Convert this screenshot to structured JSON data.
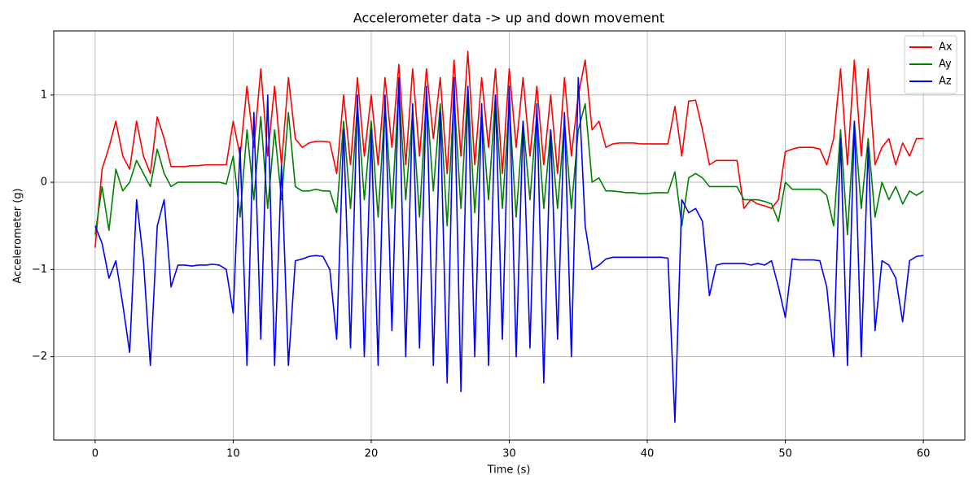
{
  "chart_data": {
    "type": "line",
    "title": "Accelerometer data -> up and down movement",
    "x_label": "Time (s)",
    "y_label": "Accelerometer (g)",
    "x": [
      0,
      0.5,
      1,
      1.5,
      2,
      2.5,
      3,
      3.5,
      4,
      4.5,
      5,
      5.5,
      6,
      6.5,
      7,
      7.5,
      8,
      8.5,
      9,
      9.5,
      10,
      10.5,
      11,
      11.5,
      12,
      12.5,
      13,
      13.5,
      14,
      14.5,
      15,
      15.5,
      16,
      16.5,
      17,
      17.5,
      18,
      18.5,
      19,
      19.5,
      20,
      20.5,
      21,
      21.5,
      22,
      22.5,
      23,
      23.5,
      24,
      24.5,
      25,
      25.5,
      26,
      26.5,
      27,
      27.5,
      28,
      28.5,
      29,
      29.5,
      30,
      30.5,
      31,
      31.5,
      32,
      32.5,
      33,
      33.5,
      34,
      34.5,
      35,
      35.5,
      36,
      36.5,
      37,
      37.5,
      38,
      38.5,
      39,
      39.5,
      40,
      40.5,
      41,
      41.5,
      42,
      42.5,
      43,
      43.5,
      44,
      44.5,
      45,
      45.5,
      46,
      46.5,
      47,
      47.5,
      48,
      48.5,
      49,
      49.5,
      50,
      50.5,
      51,
      51.5,
      52,
      52.5,
      53,
      53.5,
      54,
      54.5,
      55,
      55.5,
      56,
      56.5,
      57,
      57.5,
      58,
      58.5,
      59,
      59.5,
      60
    ],
    "series": [
      {
        "name": "Ax",
        "color": "#ff0000",
        "values": [
          -0.75,
          0.15,
          0.4,
          0.7,
          0.3,
          0.15,
          0.7,
          0.3,
          0.1,
          0.75,
          0.5,
          0.18,
          0.18,
          0.18,
          0.19,
          0.19,
          0.2,
          0.2,
          0.2,
          0.2,
          0.7,
          0.3,
          1.1,
          0.4,
          1.3,
          0.3,
          1.1,
          0.2,
          1.2,
          0.5,
          0.4,
          0.45,
          0.47,
          0.47,
          0.46,
          0.1,
          1.0,
          0.2,
          1.2,
          0.3,
          1.0,
          0.2,
          1.2,
          0.4,
          1.35,
          0.2,
          1.3,
          0.3,
          1.3,
          0.5,
          1.2,
          0.1,
          1.4,
          0.3,
          1.5,
          0.2,
          1.2,
          0.4,
          1.3,
          0.1,
          1.3,
          0.4,
          1.2,
          0.3,
          1.1,
          0.2,
          1.0,
          0.1,
          1.2,
          0.3,
          1.0,
          1.4,
          0.6,
          0.7,
          0.4,
          0.44,
          0.45,
          0.45,
          0.45,
          0.44,
          0.44,
          0.44,
          0.44,
          0.44,
          0.87,
          0.3,
          0.93,
          0.94,
          0.6,
          0.2,
          0.25,
          0.25,
          0.25,
          0.25,
          -0.3,
          -0.2,
          -0.25,
          -0.27,
          -0.3,
          -0.2,
          0.35,
          0.38,
          0.4,
          0.4,
          0.4,
          0.38,
          0.2,
          0.5,
          1.3,
          0.2,
          1.4,
          0.3,
          1.3,
          0.2,
          0.4,
          0.5,
          0.2,
          0.45,
          0.3,
          0.5,
          0.5
        ]
      },
      {
        "name": "Ay",
        "color": "#008000",
        "values": [
          -0.6,
          -0.05,
          -0.55,
          0.15,
          -0.1,
          0.0,
          0.25,
          0.1,
          -0.05,
          0.38,
          0.1,
          -0.05,
          0,
          0,
          0,
          0,
          0,
          0,
          0,
          -0.02,
          0.3,
          -0.4,
          0.6,
          -0.2,
          0.75,
          -0.3,
          0.6,
          -0.2,
          0.8,
          -0.05,
          -0.1,
          -0.1,
          -0.08,
          -0.1,
          -0.1,
          -0.35,
          0.7,
          -0.3,
          0.9,
          -0.2,
          0.7,
          -0.4,
          0.9,
          -0.3,
          1.1,
          -0.2,
          0.8,
          -0.4,
          1.0,
          -0.1,
          0.9,
          -0.5,
          1.0,
          -0.3,
          1.1,
          -0.35,
          0.8,
          -0.2,
          1.0,
          -0.3,
          0.9,
          -0.4,
          0.7,
          -0.2,
          0.8,
          -0.3,
          0.6,
          -0.3,
          0.7,
          -0.3,
          0.6,
          0.9,
          0.0,
          0.05,
          -0.1,
          -0.1,
          -0.11,
          -0.12,
          -0.12,
          -0.13,
          -0.13,
          -0.12,
          -0.12,
          -0.12,
          0.12,
          -0.5,
          0.05,
          0.1,
          0.05,
          -0.05,
          -0.05,
          -0.05,
          -0.05,
          -0.05,
          -0.2,
          -0.2,
          -0.2,
          -0.22,
          -0.25,
          -0.45,
          0.0,
          -0.08,
          -0.08,
          -0.08,
          -0.08,
          -0.08,
          -0.15,
          -0.5,
          0.6,
          -0.6,
          0.7,
          -0.3,
          0.5,
          -0.4,
          0.0,
          -0.2,
          -0.05,
          -0.25,
          -0.1,
          -0.15,
          -0.1
        ]
      },
      {
        "name": "Az",
        "color": "#0000ff",
        "values": [
          -0.5,
          -0.7,
          -1.1,
          -0.9,
          -1.4,
          -1.95,
          -0.2,
          -0.9,
          -2.1,
          -0.5,
          -0.2,
          -1.2,
          -0.95,
          -0.95,
          -0.96,
          -0.95,
          -0.95,
          -0.94,
          -0.95,
          -1.0,
          -1.5,
          0.4,
          -2.1,
          0.8,
          -1.8,
          1.0,
          -2.1,
          0.2,
          -2.1,
          -0.9,
          -0.88,
          -0.85,
          -0.84,
          -0.85,
          -1.0,
          -1.8,
          0.6,
          -1.9,
          1.0,
          -2.0,
          0.6,
          -2.1,
          1.0,
          -1.7,
          1.2,
          -2.0,
          0.9,
          -1.9,
          1.1,
          -2.1,
          0.8,
          -2.3,
          1.2,
          -2.4,
          1.1,
          -2.0,
          0.9,
          -2.1,
          1.0,
          -1.8,
          1.1,
          -2.0,
          0.7,
          -1.9,
          0.9,
          -2.3,
          0.6,
          -1.8,
          0.8,
          -2.0,
          1.2,
          -0.5,
          -1.0,
          -0.95,
          -0.88,
          -0.86,
          -0.86,
          -0.86,
          -0.86,
          -0.86,
          -0.86,
          -0.86,
          -0.86,
          -0.87,
          -2.75,
          -0.2,
          -0.35,
          -0.3,
          -0.45,
          -1.3,
          -0.95,
          -0.93,
          -0.93,
          -0.93,
          -0.93,
          -0.95,
          -0.93,
          -0.95,
          -0.9,
          -1.2,
          -1.55,
          -0.88,
          -0.89,
          -0.89,
          -0.89,
          -0.9,
          -1.2,
          -2.0,
          0.5,
          -2.1,
          0.7,
          -2.0,
          0.4,
          -1.7,
          -0.9,
          -0.95,
          -1.1,
          -1.6,
          -0.9,
          -0.85,
          -0.84
        ]
      }
    ],
    "xlim": [
      -3,
      63
    ],
    "xticks": [
      0,
      10,
      20,
      30,
      40,
      50,
      60
    ],
    "ylim": [
      -2.955,
      1.735
    ],
    "yticks": [
      {
        "value": -2,
        "label": "−2"
      },
      {
        "value": -1,
        "label": "−1"
      },
      0,
      1
    ],
    "grid": true,
    "legend": "upper right"
  }
}
